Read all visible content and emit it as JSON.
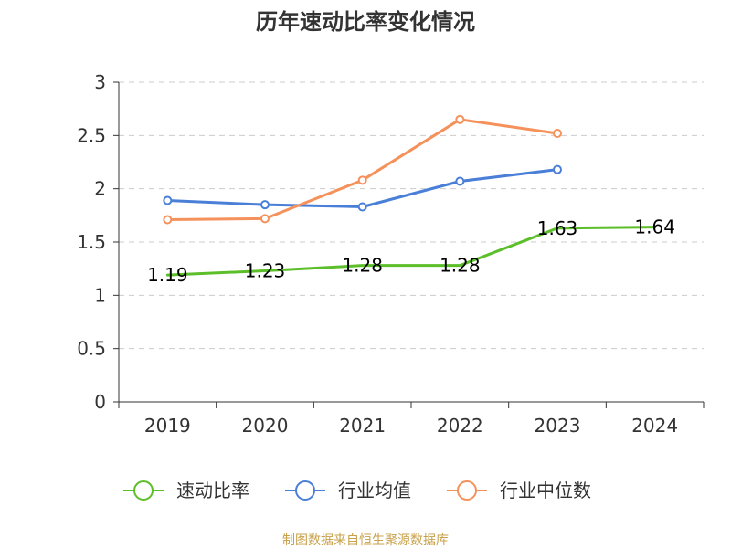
{
  "chart_data": {
    "type": "line",
    "title": "历年速动比率变化情况",
    "categories": [
      "2019",
      "2020",
      "2021",
      "2022",
      "2023",
      "2024"
    ],
    "ylim": [
      0,
      3
    ],
    "yticks": [
      "0",
      "0.5",
      "1",
      "1.5",
      "2",
      "2.5",
      "3"
    ],
    "grid": "horizontal-dashed",
    "legend_position": "bottom",
    "series": [
      {
        "name": "速动比率",
        "color": "#5cbf2a",
        "values": [
          1.19,
          1.23,
          1.28,
          1.28,
          1.63,
          1.64
        ],
        "labels": [
          "1.19",
          "1.23",
          "1.28",
          "1.28",
          "1.63",
          "1.64"
        ]
      },
      {
        "name": "行业均值",
        "color": "#4a7fd8",
        "values": [
          1.89,
          1.85,
          1.83,
          2.07,
          2.18,
          null
        ]
      },
      {
        "name": "行业中位数",
        "color": "#f5915b",
        "values": [
          1.71,
          1.72,
          2.08,
          2.65,
          2.52,
          null
        ]
      }
    ]
  },
  "source": {
    "text": "制图数据来自恒生聚源数据库",
    "color": "#c8a14a"
  }
}
